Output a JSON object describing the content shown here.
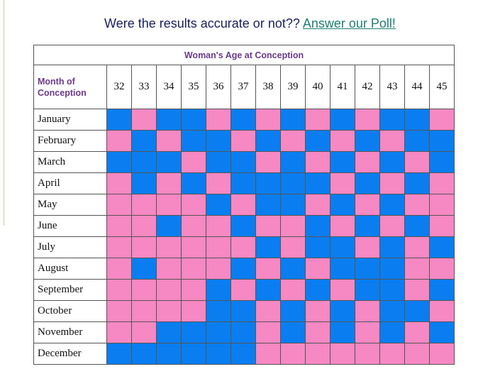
{
  "poll": {
    "question": "Were the results accurate or not?? ",
    "link_label": "Answer our Poll!"
  },
  "table": {
    "title": "Woman's Age at Conception",
    "month_header_line1": "Month of",
    "month_header_line2": "Conception",
    "ages": [
      "32",
      "33",
      "34",
      "35",
      "36",
      "37",
      "38",
      "39",
      "40",
      "41",
      "42",
      "43",
      "44",
      "45"
    ],
    "colors": {
      "b": "#0a7ef0",
      "p": "#f688c3"
    },
    "rows": [
      {
        "month": "January",
        "cells": [
          "b",
          "p",
          "b",
          "b",
          "p",
          "b",
          "p",
          "b",
          "p",
          "b",
          "p",
          "b",
          "b",
          "p"
        ]
      },
      {
        "month": "February",
        "cells": [
          "p",
          "b",
          "p",
          "b",
          "b",
          "p",
          "b",
          "p",
          "b",
          "p",
          "b",
          "p",
          "b",
          "b"
        ]
      },
      {
        "month": "March",
        "cells": [
          "b",
          "b",
          "b",
          "p",
          "b",
          "b",
          "p",
          "b",
          "p",
          "b",
          "p",
          "b",
          "p",
          "b"
        ]
      },
      {
        "month": "April",
        "cells": [
          "p",
          "b",
          "p",
          "b",
          "p",
          "b",
          "b",
          "b",
          "b",
          "p",
          "b",
          "p",
          "b",
          "p"
        ]
      },
      {
        "month": "May",
        "cells": [
          "p",
          "p",
          "p",
          "p",
          "b",
          "p",
          "b",
          "b",
          "p",
          "b",
          "p",
          "b",
          "p",
          "p"
        ]
      },
      {
        "month": "June",
        "cells": [
          "p",
          "p",
          "b",
          "p",
          "p",
          "b",
          "p",
          "p",
          "b",
          "p",
          "b",
          "p",
          "b",
          "p"
        ]
      },
      {
        "month": "July",
        "cells": [
          "p",
          "p",
          "p",
          "p",
          "p",
          "p",
          "b",
          "p",
          "b",
          "b",
          "p",
          "b",
          "p",
          "b"
        ]
      },
      {
        "month": "August",
        "cells": [
          "p",
          "b",
          "p",
          "p",
          "p",
          "b",
          "p",
          "b",
          "p",
          "b",
          "b",
          "b",
          "p",
          "p"
        ]
      },
      {
        "month": "September",
        "cells": [
          "p",
          "p",
          "p",
          "p",
          "b",
          "p",
          "b",
          "p",
          "b",
          "p",
          "b",
          "b",
          "p",
          "b"
        ]
      },
      {
        "month": "October",
        "cells": [
          "p",
          "p",
          "p",
          "p",
          "b",
          "b",
          "p",
          "b",
          "p",
          "b",
          "p",
          "b",
          "b",
          "p"
        ]
      },
      {
        "month": "November",
        "cells": [
          "p",
          "p",
          "b",
          "b",
          "b",
          "b",
          "p",
          "b",
          "p",
          "b",
          "p",
          "b",
          "p",
          "b"
        ]
      },
      {
        "month": "December",
        "cells": [
          "b",
          "b",
          "b",
          "b",
          "b",
          "b",
          "p",
          "p",
          "p",
          "p",
          "p",
          "p",
          "p",
          "p"
        ]
      }
    ]
  }
}
